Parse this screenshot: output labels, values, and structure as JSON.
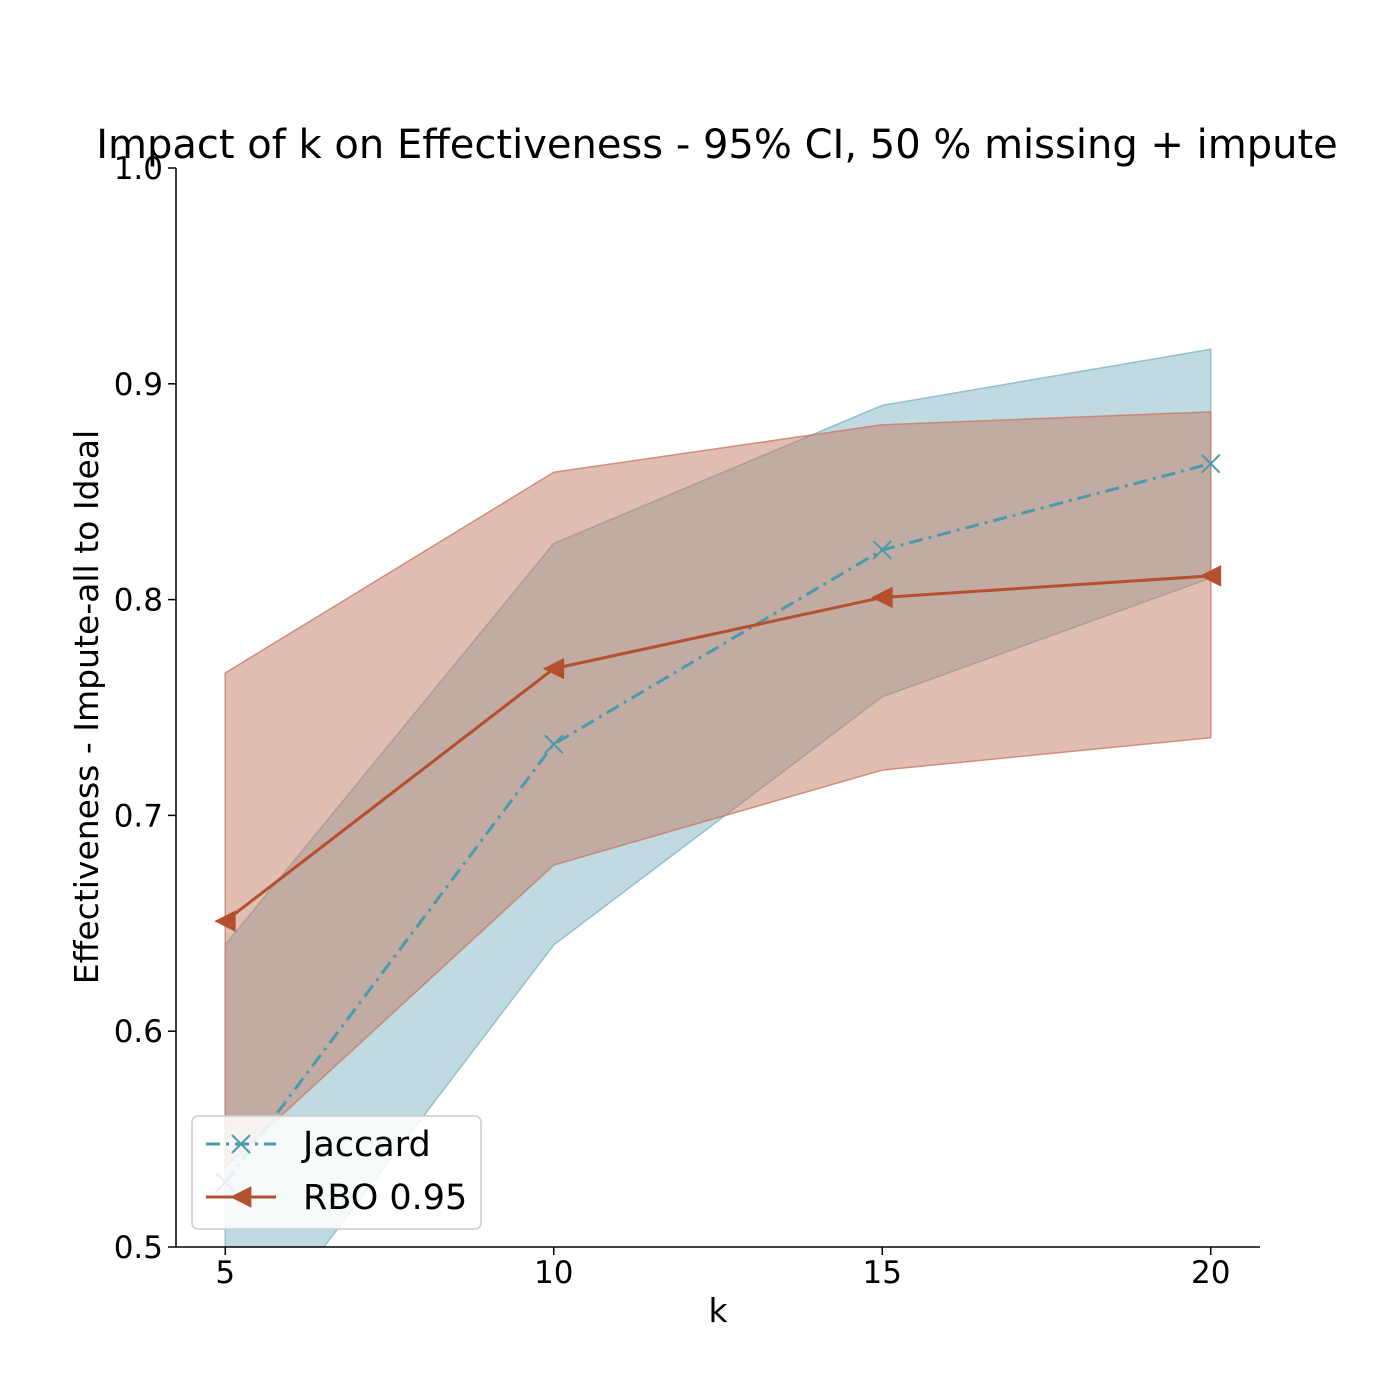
{
  "chart_data": {
    "type": "line",
    "title": "Impact of k on Effectiveness - 95% CI, 50 % missing + impute",
    "xlabel": "k",
    "ylabel": "Effectiveness - Impute-all to Ideal",
    "x": [
      5,
      10,
      15,
      20
    ],
    "xticks": [
      "5",
      "10",
      "15",
      "20"
    ],
    "yticks": [
      "0.5",
      "0.6",
      "0.7",
      "0.8",
      "0.9",
      "1.0"
    ],
    "xlim": [
      4.25,
      20.75
    ],
    "ylim": [
      0.5,
      1.0
    ],
    "legend_position": "lower left",
    "series": [
      {
        "name": "Jaccard",
        "values": [
          0.53,
          0.733,
          0.823,
          0.863
        ],
        "ci_lower": [
          0.44,
          0.64,
          0.755,
          0.81
        ],
        "ci_upper": [
          0.64,
          0.826,
          0.89,
          0.916
        ],
        "color": "#4a9aad",
        "band_color": "#7fb5c3",
        "line_style": "dashdot",
        "marker": "x"
      },
      {
        "name": "RBO 0.95",
        "values": [
          0.651,
          0.768,
          0.801,
          0.811
        ],
        "ci_lower": [
          0.537,
          0.677,
          0.721,
          0.736
        ],
        "ci_upper": [
          0.766,
          0.859,
          0.881,
          0.887
        ],
        "color": "#b5502f",
        "band_color": "#c67c64",
        "line_style": "solid",
        "marker": "triangle-left"
      }
    ]
  }
}
